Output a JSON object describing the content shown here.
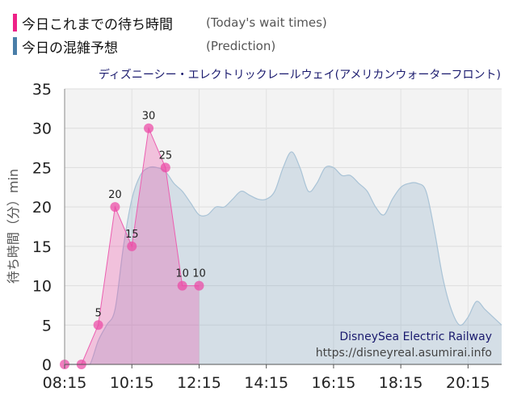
{
  "legend": {
    "actual": {
      "label": "今日これまでの待ち時間",
      "en": "(Today's wait times)",
      "color": "#ee2288"
    },
    "predicted": {
      "label": "今日の混雑予想",
      "en": "(Prediction)",
      "color": "#4a7ea8"
    }
  },
  "chart_data": {
    "type": "area",
    "title": "ディズニーシー・エレクトリックレールウェイ(アメリカンウォーターフロント)",
    "ylabel": "待ち時間（分）min",
    "xlabel": "",
    "ylim": [
      0,
      35
    ],
    "xlim": [
      "08:15",
      "21:15"
    ],
    "x_ticks": [
      "08:15",
      "10:15",
      "12:15",
      "14:15",
      "16:15",
      "18:15",
      "20:15"
    ],
    "y_ticks": [
      0,
      5,
      10,
      15,
      20,
      25,
      30,
      35
    ],
    "grid": true,
    "series": [
      {
        "name": "今日の混雑予想",
        "points": [
          [
            "08:15",
            0
          ],
          [
            "08:30",
            0
          ],
          [
            "08:45",
            0
          ],
          [
            "09:00",
            0
          ],
          [
            "09:15",
            3
          ],
          [
            "09:30",
            5
          ],
          [
            "09:45",
            7
          ],
          [
            "10:00",
            15
          ],
          [
            "10:15",
            21
          ],
          [
            "10:30",
            24
          ],
          [
            "10:45",
            25
          ],
          [
            "11:00",
            25
          ],
          [
            "11:15",
            24.5
          ],
          [
            "11:30",
            23
          ],
          [
            "11:45",
            22
          ],
          [
            "12:00",
            20.5
          ],
          [
            "12:15",
            19
          ],
          [
            "12:30",
            19
          ],
          [
            "12:45",
            20
          ],
          [
            "13:00",
            20
          ],
          [
            "13:15",
            21
          ],
          [
            "13:30",
            22
          ],
          [
            "13:45",
            21.5
          ],
          [
            "14:00",
            21
          ],
          [
            "14:15",
            21
          ],
          [
            "14:30",
            22
          ],
          [
            "14:45",
            25
          ],
          [
            "15:00",
            27
          ],
          [
            "15:15",
            25
          ],
          [
            "15:30",
            22
          ],
          [
            "15:45",
            23
          ],
          [
            "16:00",
            25
          ],
          [
            "16:15",
            25
          ],
          [
            "16:30",
            24
          ],
          [
            "16:45",
            24
          ],
          [
            "17:00",
            23
          ],
          [
            "17:15",
            22
          ],
          [
            "17:30",
            20
          ],
          [
            "17:45",
            19
          ],
          [
            "18:00",
            21
          ],
          [
            "18:15",
            22.5
          ],
          [
            "18:30",
            23
          ],
          [
            "18:45",
            23
          ],
          [
            "19:00",
            22
          ],
          [
            "19:15",
            17
          ],
          [
            "19:30",
            11
          ],
          [
            "19:45",
            7
          ],
          [
            "20:00",
            5
          ],
          [
            "20:15",
            6
          ],
          [
            "20:30",
            8
          ],
          [
            "20:45",
            7
          ],
          [
            "21:00",
            6
          ],
          [
            "21:15",
            5
          ]
        ]
      },
      {
        "name": "今日これまでの待ち時間",
        "points": [
          [
            "08:15",
            0
          ],
          [
            "08:45",
            0
          ],
          [
            "09:15",
            5
          ],
          [
            "09:45",
            20
          ],
          [
            "10:15",
            15
          ],
          [
            "10:45",
            30
          ],
          [
            "11:15",
            25
          ],
          [
            "11:45",
            10
          ],
          [
            "12:15",
            10
          ]
        ],
        "labels": [
          "",
          "",
          "5",
          "20",
          "15",
          "30",
          "25",
          "10",
          "10"
        ]
      }
    ]
  },
  "watermark": {
    "name": "DisneySea Electric Railway",
    "url": "https://disneyreal.asumirai.info"
  }
}
